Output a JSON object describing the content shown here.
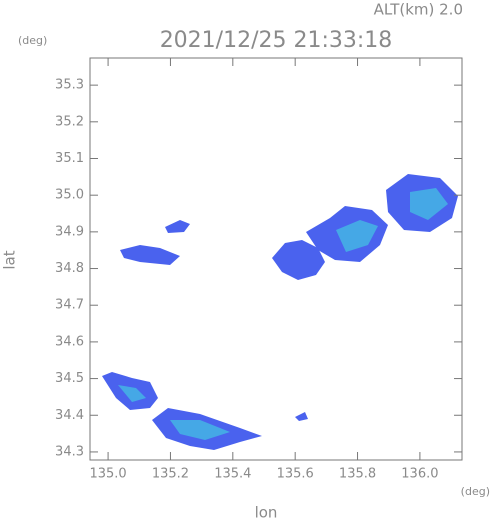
{
  "chart_data": {
    "type": "map",
    "title": "2021/12/25 21:33:18",
    "subtitle": "ALT(km)  2.0",
    "y_unit": "(deg)",
    "x_unit": "(deg)",
    "x_label": "lon",
    "y_label": "lat",
    "xlim": [
      134.942,
      136.135
    ],
    "ylim": [
      34.278,
      35.374
    ],
    "xticks": [
      {
        "value": 135,
        "label": "135.0"
      },
      135.2,
      135.4,
      135.6,
      135.8,
      {
        "value": 136,
        "label": "136.0"
      }
    ],
    "yticks": [
      34.3,
      34.4,
      34.5,
      34.6,
      34.7,
      34.8,
      34.9,
      {
        "value": 35,
        "label": "35.0"
      },
      35.1,
      35.2,
      35.3
    ]
  }
}
